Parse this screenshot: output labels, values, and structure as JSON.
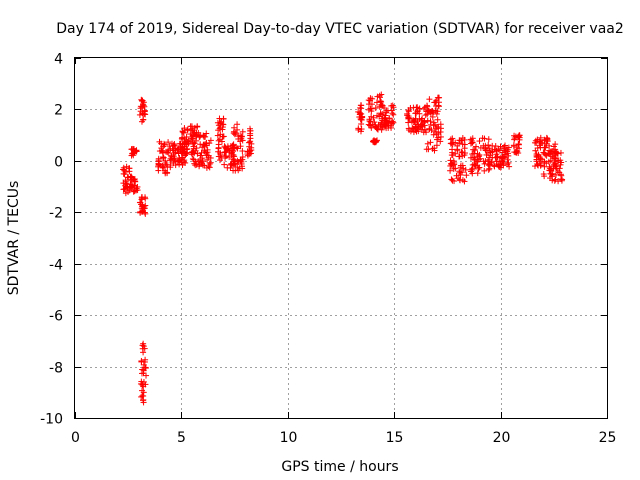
{
  "chart_data": {
    "type": "scatter",
    "title": "Day 174 of 2019, Sidereal Day-to-day VTEC variation (SDTVAR) for receiver vaa2",
    "xlabel": "GPS time / hours",
    "ylabel": "SDTVAR / TECUs",
    "xlim": [
      0,
      25
    ],
    "ylim": [
      -10,
      4
    ],
    "xticks": [
      "0",
      "5",
      "10",
      "15",
      "20",
      "25"
    ],
    "yticks": [
      "-10",
      "-8",
      "-6",
      "-4",
      "-2",
      "0",
      "2",
      "4"
    ],
    "xtick_values": [
      0,
      5,
      10,
      15,
      20,
      25
    ],
    "ytick_values": [
      -10,
      -8,
      -6,
      -4,
      -2,
      0,
      2,
      4
    ],
    "grid": true,
    "marker": "+",
    "marker_color": "#ff0000",
    "series": [
      {
        "name": "SDTVAR",
        "clusters": [
          {
            "x": [
              2.25,
              2.6
            ],
            "y": [
              -1.3,
              -0.2
            ]
          },
          {
            "x": [
              2.6,
              2.95
            ],
            "y": [
              -1.2,
              -0.6
            ]
          },
          {
            "x": [
              2.65,
              2.9
            ],
            "y": [
              0.2,
              0.5
            ]
          },
          {
            "x": [
              3.05,
              3.3
            ],
            "y": [
              1.5,
              2.4
            ]
          },
          {
            "x": [
              3.05,
              3.35
            ],
            "y": [
              -2.1,
              -1.4
            ]
          },
          {
            "x": [
              3.1,
              3.35
            ],
            "y": [
              -9.4,
              -7.0
            ]
          },
          {
            "x": [
              3.9,
              4.5
            ],
            "y": [
              -0.5,
              0.8
            ]
          },
          {
            "x": [
              4.5,
              5.2
            ],
            "y": [
              -0.2,
              0.7
            ]
          },
          {
            "x": [
              5.0,
              5.8
            ],
            "y": [
              0.2,
              1.4
            ]
          },
          {
            "x": [
              5.5,
              6.4
            ],
            "y": [
              -0.3,
              1.1
            ]
          },
          {
            "x": [
              6.7,
              7.0
            ],
            "y": [
              0.0,
              1.7
            ]
          },
          {
            "x": [
              7.0,
              7.5
            ],
            "y": [
              -0.3,
              0.6
            ]
          },
          {
            "x": [
              7.4,
              7.9
            ],
            "y": [
              -0.4,
              1.5
            ]
          },
          {
            "x": [
              8.1,
              8.3
            ],
            "y": [
              0.2,
              1.3
            ]
          },
          {
            "x": [
              13.3,
              13.5
            ],
            "y": [
              1.0,
              2.2
            ]
          },
          {
            "x": [
              13.8,
              14.4
            ],
            "y": [
              1.2,
              2.6
            ]
          },
          {
            "x": [
              14.0,
              14.2
            ],
            "y": [
              0.7,
              0.8
            ]
          },
          {
            "x": [
              14.4,
              15.0
            ],
            "y": [
              1.2,
              2.2
            ]
          },
          {
            "x": [
              15.6,
              16.5
            ],
            "y": [
              1.1,
              2.1
            ]
          },
          {
            "x": [
              16.5,
              17.2
            ],
            "y": [
              0.4,
              2.5
            ]
          },
          {
            "x": [
              17.6,
              18.4
            ],
            "y": [
              -0.8,
              0.9
            ]
          },
          {
            "x": [
              18.6,
              19.5
            ],
            "y": [
              -0.5,
              0.9
            ]
          },
          {
            "x": [
              19.5,
              20.4
            ],
            "y": [
              -0.3,
              0.6
            ]
          },
          {
            "x": [
              20.6,
              20.9
            ],
            "y": [
              0.3,
              1.0
            ]
          },
          {
            "x": [
              21.6,
              22.6
            ],
            "y": [
              -0.6,
              0.9
            ]
          },
          {
            "x": [
              22.3,
              22.9
            ],
            "y": [
              -0.8,
              0.4
            ]
          }
        ]
      }
    ]
  }
}
